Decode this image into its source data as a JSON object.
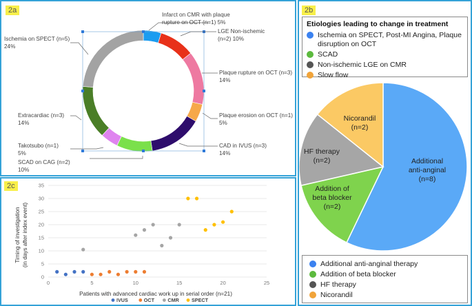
{
  "colors": {
    "panel_border": "#35a3d8",
    "tag_bg": "#f8ef4a",
    "blue": "#2f7ad9",
    "ltblue": "#1b9cf0",
    "red": "#e8311a",
    "pink": "#ee79a1",
    "orange": "#f6a849",
    "navy": "#2e0d6c",
    "green": "#7be04b",
    "violet": "#df84ef",
    "darkgreen": "#4a7e27",
    "gray": "#a3a3a3",
    "pie_blue": "#5aa9f7",
    "pie_green": "#7fd34d",
    "pie_gray": "#a6a6a6",
    "pie_yellow": "#fbc964",
    "leg_blue": "#3b82f0",
    "leg_green": "#5cba3e",
    "leg_darkgray": "#555555",
    "leg_orange": "#f1a43a",
    "ivus": "#4472c4",
    "oct": "#ed7d31",
    "cmr": "#a5a5a5",
    "spect": "#ffc000"
  },
  "panel_a": {
    "tag": "2a",
    "labels": {
      "infarct_l1": "Infarct on CMR with plaque",
      "infarct_l2": "rupture on OCT (n=1)  5%",
      "lge_l1": "LGE Non-ischemic",
      "lge_l2": "(n=2)  10%",
      "pr_l1": "Plaque rupture on OCT (n=3)",
      "pr_l2": "14%",
      "pe_l1": "Plaque erosion on OCT (n=1)",
      "pe_l2": "5%",
      "cad_l1": "CAD in IVUS (n=3)",
      "cad_l2": "14%",
      "scad_l1": "SCAD on CAG (n=2)",
      "scad_l2": "10%",
      "tako_l1": "Takotsubo (n=1)",
      "tako_l2": "5%",
      "extra_l1": "Extracardiac (n=3)",
      "extra_l2": "14%",
      "isch_l1": "Ischemia on SPECT (n=5)",
      "isch_l2": "24%"
    }
  },
  "panel_b": {
    "tag": "2b",
    "title": "Etiologies leading to change in treatment",
    "top_legend": [
      {
        "text": "Ischemia on SPECT, Post-MI Angina, Plaque disruption on OCT",
        "color": "#3b82f0"
      },
      {
        "text": "SCAD",
        "color": "#5cba3e"
      },
      {
        "text": "Non-ischemic LGE on CMR",
        "color": "#555555"
      },
      {
        "text": "Slow flow",
        "color": "#f1a43a"
      }
    ],
    "pie_labels": {
      "anti_l1": "Additional",
      "anti_l2": "anti-anginal",
      "anti_l3": "(n=8)",
      "beta_l1": "Addition of",
      "beta_l2": "beta blocker",
      "beta_l3": "(n=2)",
      "hf_l1": "HF therapy",
      "hf_l2": "(n=2)",
      "nic_l1": "Nicorandil",
      "nic_l2": "(n=2)"
    },
    "bottom_legend": [
      {
        "text": "Additional anti-anginal therapy",
        "color": "#3b82f0"
      },
      {
        "text": "Addition of beta blocker",
        "color": "#5cba3e"
      },
      {
        "text": "HF therapy",
        "color": "#555555"
      },
      {
        "text": "Nicorandil",
        "color": "#f1a43a"
      }
    ]
  },
  "panel_c": {
    "tag": "2c"
  },
  "chart_data": [
    {
      "type": "pie",
      "subtype": "donut",
      "panel": "2a",
      "categories": [
        "Infarct on CMR with plaque rupture on OCT",
        "LGE Non-ischemic",
        "Plaque rupture on OCT",
        "Plaque erosion on OCT",
        "CAD in IVUS",
        "SCAD on CAG",
        "Takotsubo",
        "Extracardiac",
        "Ischemia on SPECT"
      ],
      "values": [
        1,
        2,
        3,
        1,
        3,
        2,
        1,
        3,
        5
      ],
      "percents": [
        5,
        10,
        14,
        5,
        14,
        10,
        5,
        14,
        24
      ],
      "colors": [
        "#1b9cf0",
        "#e8311a",
        "#ee79a1",
        "#f6a849",
        "#2e0d6c",
        "#7be04b",
        "#df84ef",
        "#4a7e27",
        "#a3a3a3"
      ]
    },
    {
      "type": "pie",
      "panel": "2b",
      "title": "Etiologies leading to change in treatment",
      "categories": [
        "Additional anti-anginal therapy",
        "Addition of beta blocker",
        "HF therapy",
        "Nicorandil"
      ],
      "values": [
        8,
        2,
        2,
        2
      ],
      "colors": [
        "#5aa9f7",
        "#7fd34d",
        "#a6a6a6",
        "#fbc964"
      ]
    },
    {
      "type": "scatter",
      "panel": "2c",
      "xlabel": "Patients with advanced cardiac work up in serial order (n=21)",
      "ylabel_l1": "Timing of investigation",
      "ylabel_l2": "(in days after index event)",
      "xlim": [
        0,
        25
      ],
      "ylim": [
        0,
        35
      ],
      "xticks": [
        0,
        5,
        10,
        15,
        20,
        25
      ],
      "yticks": [
        0,
        5,
        10,
        15,
        20,
        25,
        30,
        35
      ],
      "grid": true,
      "legend_position": "bottom",
      "series": [
        {
          "name": "IVUS",
          "color": "#4472c4",
          "points": [
            [
              1,
              2
            ],
            [
              2,
              1
            ],
            [
              3,
              2
            ],
            [
              4,
              2
            ]
          ]
        },
        {
          "name": "OCT",
          "color": "#ed7d31",
          "points": [
            [
              5,
              1
            ],
            [
              6,
              1
            ],
            [
              7,
              2
            ],
            [
              8,
              1
            ],
            [
              9,
              2
            ],
            [
              10,
              2
            ],
            [
              11,
              2
            ]
          ]
        },
        {
          "name": "CMR",
          "color": "#a5a5a5",
          "points": [
            [
              4,
              10.5
            ],
            [
              10,
              16
            ],
            [
              11,
              18
            ],
            [
              12,
              20
            ],
            [
              13,
              12
            ],
            [
              14,
              15
            ],
            [
              15,
              20
            ]
          ]
        },
        {
          "name": "SPECT",
          "color": "#ffc000",
          "points": [
            [
              16,
              30
            ],
            [
              17,
              30
            ],
            [
              18,
              18
            ],
            [
              19,
              20
            ],
            [
              20,
              21
            ],
            [
              21,
              25
            ]
          ]
        }
      ]
    }
  ]
}
